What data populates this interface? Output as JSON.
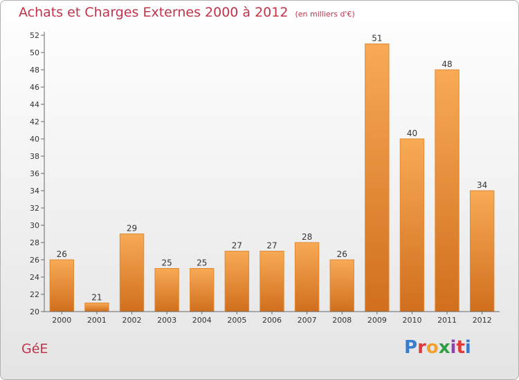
{
  "header": {
    "title": "Achats et Charges Externes 2000 à 2012",
    "subtitle": "(en milliers d'€)"
  },
  "footer": {
    "commune": "GéE",
    "logo_text": "Proxiti",
    "logo_colors": [
      "#3a7ccc",
      "#e23a3a",
      "#f2a12e",
      "#2f9e44",
      "#8e44ad",
      "#e23a3a",
      "#3a7ccc"
    ]
  },
  "chart_data": {
    "type": "bar",
    "title": "Achats et Charges Externes 2000 à 2012",
    "subtitle": "(en milliers d'€)",
    "xlabel": "",
    "ylabel": "",
    "categories": [
      "2000",
      "2001",
      "2002",
      "2003",
      "2004",
      "2005",
      "2006",
      "2007",
      "2008",
      "2009",
      "2010",
      "2011",
      "2012"
    ],
    "values": [
      26,
      21,
      29,
      25,
      25,
      27,
      27,
      28,
      26,
      51,
      40,
      48,
      34
    ],
    "ylim": [
      20,
      52
    ],
    "ytick_step": 2,
    "grid": false,
    "legend": "none",
    "colors": {
      "bar_top": "#f8aa55",
      "bar_bottom": "#d06f1e",
      "bar_side": "#e08a35",
      "axis": "#666666",
      "text": "#333333"
    }
  }
}
